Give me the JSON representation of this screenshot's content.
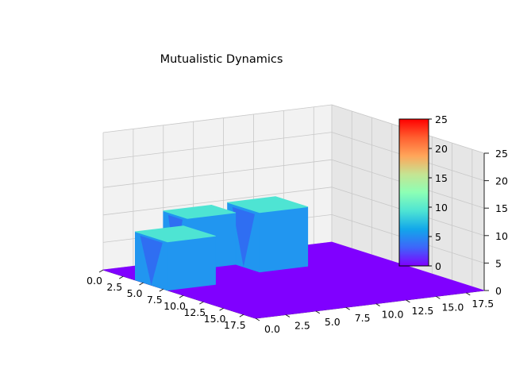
{
  "chart_data": {
    "type": "surface3d",
    "title": "Mutualistic Dynamics",
    "xlabel": "",
    "ylabel": "",
    "zlabel": "",
    "x_ticks": [
      "0.0",
      "2.5",
      "5.0",
      "7.5",
      "10.0",
      "12.5",
      "15.0",
      "17.5"
    ],
    "y_ticks": [
      "0.0",
      "2.5",
      "5.0",
      "7.5",
      "10.0",
      "12.5",
      "15.0",
      "17.5"
    ],
    "z_ticks": [
      "0",
      "5",
      "10",
      "15",
      "20",
      "25"
    ],
    "xlim": [
      0,
      19
    ],
    "ylim": [
      0,
      19
    ],
    "zlim": [
      0,
      25
    ],
    "grid": true,
    "colormap": "rainbow",
    "colorbar": {
      "ticks": [
        "0",
        "5",
        "10",
        "15",
        "20",
        "25"
      ],
      "range": [
        0,
        25
      ],
      "colors": [
        "#8000ff",
        "#3e65fa",
        "#12a7ea",
        "#4ee4d3",
        "#8cffb5",
        "#c5e492",
        "#ffa55a",
        "#ff5f30",
        "#ff0000"
      ]
    },
    "blocks": [
      {
        "name": "",
        "x_range": [
          0,
          3
        ],
        "y_range": [
          5,
          9
        ],
        "height": 9.4,
        "top_color": "#4ee4d3",
        "side_color": "#2196f0"
      },
      {
        "name": "",
        "x_range": [
          4,
          8
        ],
        "y_range": [
          0,
          4
        ],
        "height": 8.8,
        "top_color": "#4ee4d3",
        "side_color": "#2196f0"
      },
      {
        "name": "",
        "x_range": [
          2,
          6
        ],
        "y_range": [
          9,
          13
        ],
        "height": 10.8,
        "top_color": "#4ee4d3",
        "side_color": "#2196f0"
      }
    ],
    "base_value": 0,
    "base_color": "#8000ff"
  }
}
